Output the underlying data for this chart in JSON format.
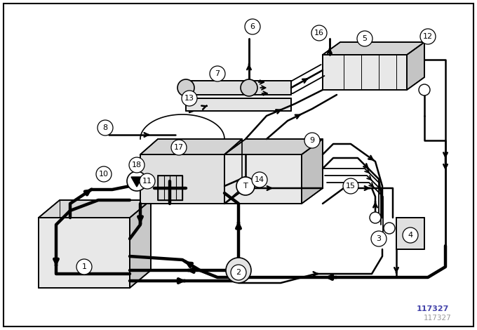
{
  "fig_width": 6.8,
  "fig_height": 4.7,
  "dpi": 100,
  "watermark": "117327",
  "bg": "white",
  "lc": "black",
  "gray1": "#e8e8e8",
  "gray2": "#d4d4d4",
  "gray3": "#c0c0c0"
}
